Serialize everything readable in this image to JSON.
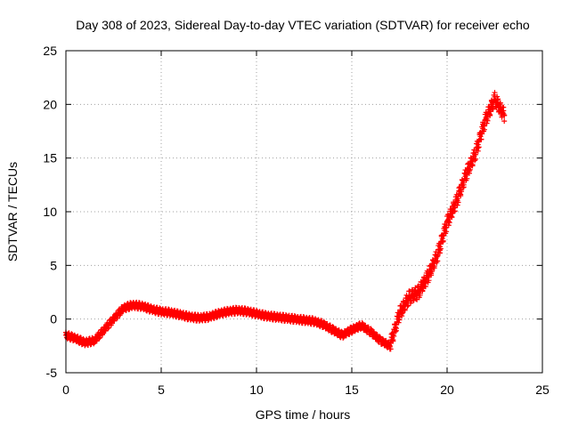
{
  "chart_data": {
    "type": "scatter",
    "title": "Day 308 of 2023, Sidereal Day-to-day VTEC variation (SDTVAR) for receiver echo",
    "xlabel": "GPS time / hours",
    "ylabel": "SDTVAR / TECUs",
    "xlim": [
      0,
      25
    ],
    "ylim": [
      -5,
      25
    ],
    "x_ticks": [
      "0",
      "5",
      "10",
      "15",
      "20",
      "25"
    ],
    "y_ticks": [
      "-5",
      "0",
      "5",
      "10",
      "15",
      "20",
      "25"
    ],
    "grid": true,
    "marker": "+",
    "series": [
      {
        "name": "SDTVAR",
        "color": "#ff0000",
        "x": [
          0.0,
          0.5,
          1.0,
          1.5,
          2.0,
          2.5,
          3.0,
          3.5,
          4.0,
          4.5,
          5.0,
          5.5,
          6.0,
          6.5,
          7.0,
          7.5,
          8.0,
          8.5,
          9.0,
          9.5,
          10.0,
          10.5,
          11.0,
          11.5,
          12.0,
          12.5,
          13.0,
          13.5,
          14.0,
          14.5,
          15.0,
          15.5,
          16.0,
          16.5,
          17.0,
          17.5,
          18.0,
          18.5,
          19.0,
          19.5,
          20.0,
          20.5,
          21.0,
          21.5,
          22.0,
          22.5,
          23.0
        ],
        "y": [
          -1.5,
          -1.8,
          -2.2,
          -2.0,
          -1.0,
          0.0,
          1.0,
          1.3,
          1.2,
          0.9,
          0.7,
          0.6,
          0.4,
          0.2,
          0.1,
          0.2,
          0.5,
          0.7,
          0.8,
          0.7,
          0.5,
          0.3,
          0.2,
          0.1,
          0.0,
          -0.1,
          -0.2,
          -0.5,
          -1.0,
          -1.5,
          -1.0,
          -0.6,
          -1.2,
          -2.0,
          -2.5,
          0.5,
          2.0,
          2.5,
          4.0,
          6.0,
          9.0,
          11.0,
          13.5,
          15.5,
          18.5,
          20.5,
          19.0
        ]
      }
    ]
  }
}
